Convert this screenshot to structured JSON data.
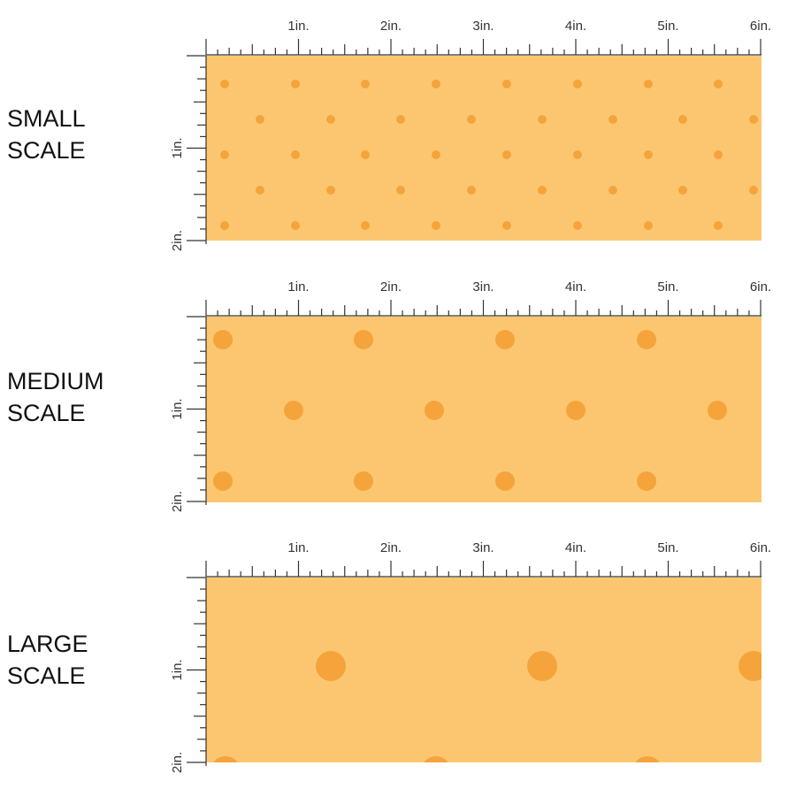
{
  "colors": {
    "background": "#fcc671",
    "dot": "#f4a43a",
    "ruler": "#333333"
  },
  "top_ruler_labels": [
    "1in.",
    "2in.",
    "3in.",
    "4in.",
    "5in.",
    "6in."
  ],
  "side_ruler_labels": [
    "1in.",
    "2in."
  ],
  "panels": [
    {
      "label_lines": [
        "SMALL",
        "SCALE"
      ],
      "scale": "small",
      "dot_pattern": "staggered small polka dots"
    },
    {
      "label_lines": [
        "MEDIUM",
        "SCALE"
      ],
      "scale": "medium",
      "dot_pattern": "staggered medium polka dots"
    },
    {
      "label_lines": [
        "LARGE",
        "SCALE"
      ],
      "scale": "large",
      "dot_pattern": "staggered large polka dots"
    }
  ]
}
